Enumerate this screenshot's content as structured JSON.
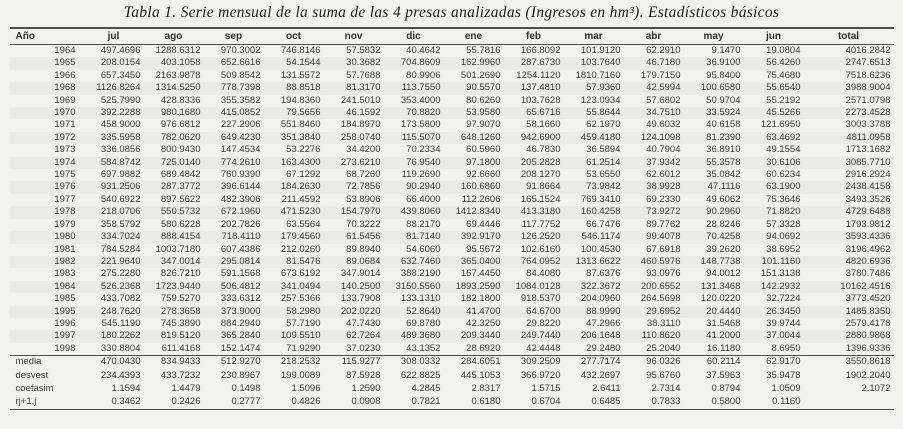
{
  "title": "Tabla 1. Serie mensual de la suma de las 4 presas analizadas (Ingresos en hm³). Estadísticos básicos",
  "colors": {
    "background": "#f1f1ee",
    "text": "#3a3a3a",
    "rule": "#4c4c4c"
  },
  "table": {
    "columns": [
      "Año",
      "jul",
      "ago",
      "sep",
      "oct",
      "nov",
      "dic",
      "ene",
      "feb",
      "mar",
      "abr",
      "may",
      "jun",
      "total"
    ],
    "rows": [
      [
        "1964",
        "497.4696",
        "1288.6312",
        "970.3002",
        "746.8146",
        "57.5832",
        "40.4642",
        "55.7816",
        "166.8092",
        "101.9120",
        "62.2910",
        "9.1470",
        "19.0804",
        "4016.2842"
      ],
      [
        "1965",
        "208.0154",
        "403.1058",
        "652.6616",
        "54.1544",
        "30.3682",
        "704.8609",
        "162.9960",
        "287.6730",
        "103.7640",
        "46.7180",
        "36.9100",
        "56.4260",
        "2747.6513"
      ],
      [
        "1966",
        "657.3450",
        "2163.9878",
        "509.8542",
        "131.5572",
        "57.7688",
        "80.9906",
        "501.2690",
        "1254.1120",
        "1810.7160",
        "179.7150",
        "95.8400",
        "75.4680",
        "7518.6236"
      ],
      [
        "1968",
        "1126.8264",
        "1314.5250",
        "778.7398",
        "88.8518",
        "81.3170",
        "113.7550",
        "90.5570",
        "137.4810",
        "57.9360",
        "42.5994",
        "100.6580",
        "55.6540",
        "3988.9004"
      ],
      [
        "1969",
        "525.7990",
        "428.8336",
        "355.3582",
        "194.8360",
        "241.5010",
        "353.4000",
        "80.6260",
        "103.7628",
        "123.0934",
        "57.6802",
        "50.9704",
        "55.2192",
        "2571.0798"
      ],
      [
        "1970",
        "392.2288",
        "980.1680",
        "415.0852",
        "79.5656",
        "46.1592",
        "70.8820",
        "53.9580",
        "65.6716",
        "55.8644",
        "34.7510",
        "33.5924",
        "45.5266",
        "2273.4528"
      ],
      [
        "1971",
        "458.9000",
        "976.6812",
        "227.2906",
        "551.8460",
        "184.8970",
        "173.5800",
        "97.9070",
        "58.1660",
        "62.1970",
        "49.6032",
        "40.6158",
        "121.6950",
        "3003.3788"
      ],
      [
        "1972",
        "335.5958",
        "782.0620",
        "649.4230",
        "351.3840",
        "258.0740",
        "115.5070",
        "648.1260",
        "942.6900",
        "459.4180",
        "124.1098",
        "81.2390",
        "63.4692",
        "4811.0958"
      ],
      [
        "1973",
        "336.0856",
        "800.9430",
        "147.4534",
        "53.2276",
        "34.4200",
        "70.2334",
        "60.5960",
        "46.7830",
        "36.5894",
        "40.7904",
        "36.8910",
        "49.1554",
        "1713.1682"
      ],
      [
        "1974",
        "584.8742",
        "725.0140",
        "774.2610",
        "163.4300",
        "273.6210",
        "76.9540",
        "97.1800",
        "205.2828",
        "61.2514",
        "37.9342",
        "55.3578",
        "30.6106",
        "3085.7710"
      ],
      [
        "1975",
        "697.9882",
        "689.4842",
        "760.9390",
        "67.1292",
        "68.7260",
        "119.2690",
        "92.6660",
        "208.1270",
        "53.6550",
        "62.6012",
        "35.0842",
        "60.6234",
        "2916.2924"
      ],
      [
        "1976",
        "931.2506",
        "287.3772",
        "396.6144",
        "184.2630",
        "72.7856",
        "90.2940",
        "160.6860",
        "91.8664",
        "73.9842",
        "38.9928",
        "47.1116",
        "63.1900",
        "2438.4158"
      ],
      [
        "1977",
        "540.6922",
        "897.5622",
        "482.3906",
        "211.4592",
        "53.8906",
        "66.4000",
        "112.2606",
        "165.1524",
        "769.3410",
        "69.2330",
        "49.6062",
        "75.3646",
        "3493.3526"
      ],
      [
        "1978",
        "218.0706",
        "550.5732",
        "672.1960",
        "471.5230",
        "154.7970",
        "439.8060",
        "1412.8340",
        "413.3180",
        "160.4258",
        "73.9272",
        "90.2960",
        "71.8820",
        "4729.6488"
      ],
      [
        "1979",
        "358.5792",
        "580.6228",
        "202.7826",
        "63.5564",
        "70.3222",
        "88.2170",
        "69.4446",
        "117.7752",
        "66.7476",
        "89.7762",
        "28.8246",
        "57.3328",
        "1793.9812"
      ],
      [
        "1980",
        "334.7024",
        "888.4154",
        "718.4110",
        "179.4560",
        "61.5456",
        "81.7140",
        "392.9170",
        "126.2520",
        "546.1174",
        "99.4078",
        "70.4258",
        "94.0692",
        "3593.4336"
      ],
      [
        "1981",
        "784.5284",
        "1003.7180",
        "607.4386",
        "212.0260",
        "89.8940",
        "54.6060",
        "95.5672",
        "102.6160",
        "100.4530",
        "67.6918",
        "39.2620",
        "38.6952",
        "3196.4962"
      ],
      [
        "1982",
        "221.9640",
        "347.0014",
        "295.0814",
        "81.5476",
        "89.0684",
        "632.7460",
        "365.0400",
        "764.0952",
        "1313.6622",
        "460.5976",
        "148.7738",
        "101.1160",
        "4820.6936"
      ],
      [
        "1983",
        "275.2280",
        "826.7210",
        "591.1568",
        "673.6192",
        "347.9014",
        "388.2190",
        "167.4450",
        "84.4080",
        "87.6376",
        "93.0976",
        "94.0012",
        "151.3138",
        "3780.7486"
      ],
      [
        "1984",
        "526.2368",
        "1723.9440",
        "506.4812",
        "341.0494",
        "140.2500",
        "3150.5560",
        "1893.2590",
        "1084.0128",
        "322.3672",
        "200.6552",
        "131.3468",
        "142.2932",
        "10162.4516"
      ],
      [
        "1985",
        "433.7082",
        "759.5270",
        "333.6312",
        "257.5366",
        "133.7908",
        "133.1310",
        "182.1800",
        "918.5370",
        "204.0960",
        "264.5698",
        "120.0220",
        "32.7224",
        "3773.4520"
      ],
      [
        "1995",
        "248.7620",
        "278.3658",
        "373.9000",
        "58.2980",
        "202.0220",
        "52.8640",
        "41.4700",
        "64.6700",
        "88.9990",
        "29.6952",
        "20.4440",
        "26.3450",
        "1485.8350"
      ],
      [
        "1996",
        "545.1190",
        "745.3890",
        "884.2940",
        "57.7190",
        "47.7430",
        "69.8780",
        "42.3250",
        "29.8220",
        "47.2966",
        "38.3110",
        "31.5468",
        "39.9744",
        "2579.4178"
      ],
      [
        "1997",
        "180.2262",
        "819.5120",
        "365.2840",
        "109.5510",
        "62.7264",
        "489.3680",
        "209.3440",
        "249.7440",
        "206.1648",
        "110.8620",
        "41.2000",
        "37.0044",
        "2880.9868"
      ],
      [
        "1998",
        "330.8804",
        "611.4168",
        "152.1474",
        "71.9290",
        "37.0230",
        "43.1352",
        "28.6920",
        "42.4448",
        "29.2480",
        "25.2040",
        "16.1180",
        "8.6950",
        "1396.9336"
      ]
    ],
    "stats_rows": [
      [
        "media",
        "470.0430",
        "834.9433",
        "512.9270",
        "218.2532",
        "115.9277",
        "308.0332",
        "284.6051",
        "309.2509",
        "277.7174",
        "96.0326",
        "60.2114",
        "62.9170",
        "3550.8618"
      ],
      [
        "desvest",
        "234.4393",
        "433.7232",
        "230.8967",
        "199.0089",
        "87.5928",
        "622.8825",
        "445.1053",
        "366.9720",
        "432.2697",
        "95.6760",
        "37.5963",
        "35.9478",
        "1902.2040"
      ],
      [
        "coefasim",
        "1.1594",
        "1.4479",
        "0.1498",
        "1.5096",
        "1.2590",
        "4.2845",
        "2.8317",
        "1.5715",
        "2.6411",
        "2.7314",
        "0.8794",
        "1.0509",
        "2.1072"
      ],
      [
        "rj+1,j",
        "0.3462",
        "0.2426",
        "0.2777",
        "0.4826",
        "0.0908",
        "0.7821",
        "0.6180",
        "0.6704",
        "0.6485",
        "0.7833",
        "0.5800",
        "0.1160",
        ""
      ]
    ]
  }
}
